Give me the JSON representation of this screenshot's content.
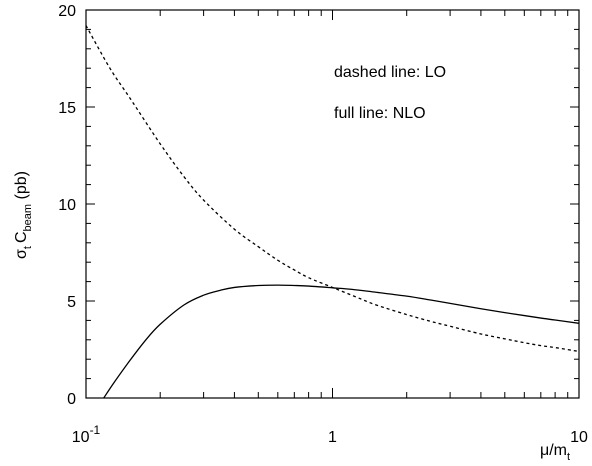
{
  "chart_data": {
    "type": "line",
    "title": "",
    "xlabel": "μ/m",
    "xlabel_sub": "t",
    "ylabel_parts": {
      "sigma": "σ",
      "sigma_sub": "t",
      "c": "C",
      "c_sub": "beam",
      "unit": " (pb)"
    },
    "x_scale": "log",
    "xlim": [
      0.1,
      10
    ],
    "ylim": [
      0,
      20
    ],
    "x_ticks": [
      {
        "value": 0.1,
        "base": "10",
        "exp": "-1"
      },
      {
        "value": 1,
        "base": "1",
        "exp": ""
      },
      {
        "value": 10,
        "base": "10",
        "exp": ""
      }
    ],
    "y_ticks": [
      {
        "value": 0,
        "label": "0"
      },
      {
        "value": 5,
        "label": "5"
      },
      {
        "value": 10,
        "label": "10"
      },
      {
        "value": 15,
        "label": "15"
      },
      {
        "value": 20,
        "label": "20"
      }
    ],
    "annotations": [
      {
        "text": "dashed line: LO"
      },
      {
        "text": "full line: NLO"
      }
    ],
    "grid": false,
    "series": [
      {
        "style": "dashed",
        "x": [
          0.1,
          0.125,
          0.15,
          0.2,
          0.25,
          0.3,
          0.4,
          0.5,
          0.6,
          0.7,
          0.8,
          1.0,
          1.25,
          1.5,
          2.0,
          2.5,
          3.0,
          4.0,
          5.0,
          6.0,
          7.0,
          8.0,
          10.0
        ],
        "y": [
          19.2,
          17.0,
          15.5,
          13.1,
          11.4,
          10.2,
          8.7,
          7.8,
          7.1,
          6.6,
          6.2,
          5.7,
          5.2,
          4.8,
          4.3,
          3.95,
          3.7,
          3.3,
          3.05,
          2.85,
          2.7,
          2.6,
          2.4
        ]
      },
      {
        "style": "solid",
        "x": [
          0.118,
          0.13,
          0.15,
          0.175,
          0.2,
          0.25,
          0.3,
          0.35,
          0.4,
          0.5,
          0.6,
          0.7,
          0.8,
          1.0,
          1.2,
          1.5,
          2.0,
          2.5,
          3.0,
          4.0,
          5.0,
          6.0,
          7.0,
          8.0,
          10.0
        ],
        "y": [
          0.0,
          0.8,
          1.9,
          3.0,
          3.8,
          4.8,
          5.3,
          5.55,
          5.7,
          5.8,
          5.82,
          5.8,
          5.77,
          5.68,
          5.6,
          5.45,
          5.25,
          5.05,
          4.88,
          4.6,
          4.4,
          4.25,
          4.12,
          4.02,
          3.85
        ]
      }
    ]
  }
}
